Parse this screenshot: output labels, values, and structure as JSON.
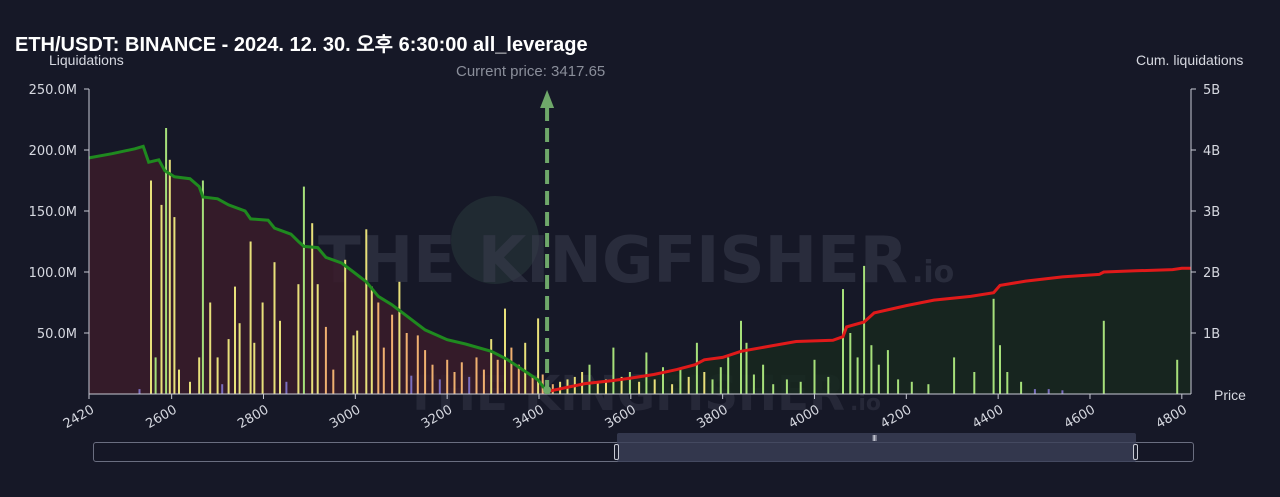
{
  "header": {
    "title": "ETH/USDT: BINANCE - 2024. 12. 30. 오후 6:30:00 all_leverage"
  },
  "annotations": {
    "current_price_label": "Current price: 3417.65",
    "current_price_value": 3417.65
  },
  "watermark": {
    "text": "THE KINGFISHER",
    "suffix": ".io"
  },
  "colors": {
    "background": "#161827",
    "short_area": "#3a1c2a",
    "long_area": "#17281f",
    "short_line": "#1f8a1f",
    "long_line": "#e01a1a",
    "bar_yellow": "#e8e07a",
    "bar_green": "#a6e07a",
    "bar_orange": "#f0b070",
    "bar_purple": "#7b6fbf",
    "current_price_line": "#6fa86a"
  },
  "chart_data": {
    "type": "bar",
    "title": "ETH/USDT: BINANCE - 2024. 12. 30. 오후 6:30:00 all_leverage",
    "ylabel": "Liquidations",
    "y2label": "Cum. liquidations",
    "xlabel": "Price",
    "xlim": [
      2420,
      4820
    ],
    "ylim": [
      0,
      250000000
    ],
    "y2lim": [
      0,
      5000000000
    ],
    "x_ticks": [
      2420,
      2600,
      2800,
      3000,
      3200,
      3400,
      3600,
      3800,
      4000,
      4200,
      4400,
      4600,
      4800
    ],
    "y_ticks": [
      {
        "value": 50000000,
        "label": "50.0M"
      },
      {
        "value": 100000000,
        "label": "100.0M"
      },
      {
        "value": 150000000,
        "label": "150.0M"
      },
      {
        "value": 200000000,
        "label": "200.0M"
      },
      {
        "value": 250000000,
        "label": "250.0M"
      }
    ],
    "y2_ticks": [
      {
        "value": 1000000000,
        "label": "1B"
      },
      {
        "value": 2000000000,
        "label": "2B"
      },
      {
        "value": 3000000000,
        "label": "3B"
      },
      {
        "value": 4000000000,
        "label": "4B"
      },
      {
        "value": 5000000000,
        "label": "5B"
      }
    ],
    "grid": false,
    "current_price": 3417.65,
    "bars": [
      {
        "x": 2530,
        "y": 4000000,
        "c": "purple"
      },
      {
        "x": 2555,
        "y": 175000000,
        "c": "yellow"
      },
      {
        "x": 2565,
        "y": 30000000,
        "c": "green"
      },
      {
        "x": 2578,
        "y": 155000000,
        "c": "yellow"
      },
      {
        "x": 2588,
        "y": 218000000,
        "c": "green"
      },
      {
        "x": 2596,
        "y": 192000000,
        "c": "yellow"
      },
      {
        "x": 2606,
        "y": 145000000,
        "c": "yellow"
      },
      {
        "x": 2616,
        "y": 20000000,
        "c": "yellow"
      },
      {
        "x": 2640,
        "y": 10000000,
        "c": "yellow"
      },
      {
        "x": 2660,
        "y": 30000000,
        "c": "yellow"
      },
      {
        "x": 2668,
        "y": 175000000,
        "c": "green"
      },
      {
        "x": 2684,
        "y": 75000000,
        "c": "yellow"
      },
      {
        "x": 2700,
        "y": 30000000,
        "c": "yellow"
      },
      {
        "x": 2710,
        "y": 8000000,
        "c": "purple"
      },
      {
        "x": 2724,
        "y": 45000000,
        "c": "yellow"
      },
      {
        "x": 2738,
        "y": 88000000,
        "c": "yellow"
      },
      {
        "x": 2748,
        "y": 58000000,
        "c": "yellow"
      },
      {
        "x": 2772,
        "y": 125000000,
        "c": "yellow"
      },
      {
        "x": 2780,
        "y": 42000000,
        "c": "yellow"
      },
      {
        "x": 2798,
        "y": 75000000,
        "c": "yellow"
      },
      {
        "x": 2824,
        "y": 108000000,
        "c": "yellow"
      },
      {
        "x": 2836,
        "y": 60000000,
        "c": "yellow"
      },
      {
        "x": 2850,
        "y": 10000000,
        "c": "purple"
      },
      {
        "x": 2876,
        "y": 90000000,
        "c": "yellow"
      },
      {
        "x": 2888,
        "y": 170000000,
        "c": "green"
      },
      {
        "x": 2906,
        "y": 140000000,
        "c": "yellow"
      },
      {
        "x": 2918,
        "y": 90000000,
        "c": "yellow"
      },
      {
        "x": 2936,
        "y": 55000000,
        "c": "orange"
      },
      {
        "x": 2952,
        "y": 20000000,
        "c": "orange"
      },
      {
        "x": 2978,
        "y": 110000000,
        "c": "yellow"
      },
      {
        "x": 2996,
        "y": 48000000,
        "c": "yellow"
      },
      {
        "x": 3004,
        "y": 52000000,
        "c": "yellow"
      },
      {
        "x": 3024,
        "y": 135000000,
        "c": "yellow"
      },
      {
        "x": 3036,
        "y": 88000000,
        "c": "yellow"
      },
      {
        "x": 3050,
        "y": 75000000,
        "c": "orange"
      },
      {
        "x": 3062,
        "y": 38000000,
        "c": "orange"
      },
      {
        "x": 3080,
        "y": 65000000,
        "c": "orange"
      },
      {
        "x": 3096,
        "y": 92000000,
        "c": "yellow"
      },
      {
        "x": 3112,
        "y": 50000000,
        "c": "orange"
      },
      {
        "x": 3122,
        "y": 15000000,
        "c": "purple"
      },
      {
        "x": 3136,
        "y": 48000000,
        "c": "orange"
      },
      {
        "x": 3152,
        "y": 36000000,
        "c": "orange"
      },
      {
        "x": 3168,
        "y": 24000000,
        "c": "orange"
      },
      {
        "x": 3184,
        "y": 12000000,
        "c": "purple"
      },
      {
        "x": 3200,
        "y": 28000000,
        "c": "orange"
      },
      {
        "x": 3216,
        "y": 18000000,
        "c": "orange"
      },
      {
        "x": 3232,
        "y": 26000000,
        "c": "orange"
      },
      {
        "x": 3248,
        "y": 14000000,
        "c": "purple"
      },
      {
        "x": 3264,
        "y": 30000000,
        "c": "orange"
      },
      {
        "x": 3280,
        "y": 20000000,
        "c": "orange"
      },
      {
        "x": 3296,
        "y": 45000000,
        "c": "yellow"
      },
      {
        "x": 3310,
        "y": 28000000,
        "c": "orange"
      },
      {
        "x": 3326,
        "y": 70000000,
        "c": "yellow"
      },
      {
        "x": 3340,
        "y": 38000000,
        "c": "orange"
      },
      {
        "x": 3356,
        "y": 24000000,
        "c": "orange"
      },
      {
        "x": 3370,
        "y": 42000000,
        "c": "yellow"
      },
      {
        "x": 3386,
        "y": 14000000,
        "c": "orange"
      },
      {
        "x": 3398,
        "y": 62000000,
        "c": "yellow"
      },
      {
        "x": 3408,
        "y": 16000000,
        "c": "orange"
      },
      {
        "x": 3430,
        "y": 8000000,
        "c": "orange"
      },
      {
        "x": 3446,
        "y": 10000000,
        "c": "yellow"
      },
      {
        "x": 3462,
        "y": 12000000,
        "c": "yellow"
      },
      {
        "x": 3478,
        "y": 14000000,
        "c": "yellow"
      },
      {
        "x": 3494,
        "y": 18000000,
        "c": "yellow"
      },
      {
        "x": 3510,
        "y": 24000000,
        "c": "green"
      },
      {
        "x": 3528,
        "y": 10000000,
        "c": "yellow"
      },
      {
        "x": 3546,
        "y": 12000000,
        "c": "yellow"
      },
      {
        "x": 3562,
        "y": 38000000,
        "c": "green"
      },
      {
        "x": 3580,
        "y": 14000000,
        "c": "yellow"
      },
      {
        "x": 3598,
        "y": 18000000,
        "c": "green"
      },
      {
        "x": 3618,
        "y": 10000000,
        "c": "yellow"
      },
      {
        "x": 3634,
        "y": 34000000,
        "c": "green"
      },
      {
        "x": 3652,
        "y": 12000000,
        "c": "yellow"
      },
      {
        "x": 3670,
        "y": 22000000,
        "c": "green"
      },
      {
        "x": 3690,
        "y": 8000000,
        "c": "yellow"
      },
      {
        "x": 3708,
        "y": 20000000,
        "c": "green"
      },
      {
        "x": 3726,
        "y": 14000000,
        "c": "yellow"
      },
      {
        "x": 3744,
        "y": 42000000,
        "c": "green"
      },
      {
        "x": 3760,
        "y": 18000000,
        "c": "yellow"
      },
      {
        "x": 3778,
        "y": 12000000,
        "c": "green"
      },
      {
        "x": 3796,
        "y": 22000000,
        "c": "green"
      },
      {
        "x": 3812,
        "y": 30000000,
        "c": "green"
      },
      {
        "x": 3840,
        "y": 60000000,
        "c": "green"
      },
      {
        "x": 3852,
        "y": 42000000,
        "c": "green"
      },
      {
        "x": 3868,
        "y": 16000000,
        "c": "green"
      },
      {
        "x": 3888,
        "y": 24000000,
        "c": "green"
      },
      {
        "x": 3910,
        "y": 8000000,
        "c": "green"
      },
      {
        "x": 3940,
        "y": 12000000,
        "c": "green"
      },
      {
        "x": 3970,
        "y": 10000000,
        "c": "green"
      },
      {
        "x": 4000,
        "y": 28000000,
        "c": "green"
      },
      {
        "x": 4030,
        "y": 14000000,
        "c": "green"
      },
      {
        "x": 4062,
        "y": 86000000,
        "c": "green"
      },
      {
        "x": 4078,
        "y": 50000000,
        "c": "green"
      },
      {
        "x": 4094,
        "y": 30000000,
        "c": "green"
      },
      {
        "x": 4108,
        "y": 105000000,
        "c": "green"
      },
      {
        "x": 4124,
        "y": 40000000,
        "c": "green"
      },
      {
        "x": 4140,
        "y": 24000000,
        "c": "green"
      },
      {
        "x": 4160,
        "y": 36000000,
        "c": "green"
      },
      {
        "x": 4182,
        "y": 12000000,
        "c": "green"
      },
      {
        "x": 4212,
        "y": 10000000,
        "c": "green"
      },
      {
        "x": 4248,
        "y": 8000000,
        "c": "green"
      },
      {
        "x": 4304,
        "y": 30000000,
        "c": "green"
      },
      {
        "x": 4348,
        "y": 18000000,
        "c": "green"
      },
      {
        "x": 4390,
        "y": 78000000,
        "c": "green"
      },
      {
        "x": 4404,
        "y": 40000000,
        "c": "green"
      },
      {
        "x": 4420,
        "y": 18000000,
        "c": "green"
      },
      {
        "x": 4450,
        "y": 10000000,
        "c": "green"
      },
      {
        "x": 4480,
        "y": 4000000,
        "c": "purple"
      },
      {
        "x": 4510,
        "y": 4000000,
        "c": "purple"
      },
      {
        "x": 4540,
        "y": 3000000,
        "c": "purple"
      },
      {
        "x": 4630,
        "y": 60000000,
        "c": "green"
      },
      {
        "x": 4790,
        "y": 28000000,
        "c": "green"
      }
    ],
    "series": [
      {
        "side": "short",
        "points": [
          [
            2420,
            3870000000
          ],
          [
            2470,
            3940000000
          ],
          [
            2520,
            4020000000
          ],
          [
            2538,
            4060000000
          ],
          [
            2550,
            3800000000
          ],
          [
            2572,
            3840000000
          ],
          [
            2585,
            3660000000
          ],
          [
            2606,
            3560000000
          ],
          [
            2640,
            3530000000
          ],
          [
            2660,
            3400000000
          ],
          [
            2668,
            3230000000
          ],
          [
            2700,
            3200000000
          ],
          [
            2724,
            3100000000
          ],
          [
            2760,
            3000000000
          ],
          [
            2772,
            2870000000
          ],
          [
            2810,
            2850000000
          ],
          [
            2824,
            2720000000
          ],
          [
            2860,
            2620000000
          ],
          [
            2876,
            2500000000
          ],
          [
            2888,
            2420000000
          ],
          [
            2918,
            2400000000
          ],
          [
            2936,
            2240000000
          ],
          [
            2970,
            2150000000
          ],
          [
            2996,
            2000000000
          ],
          [
            3024,
            1840000000
          ],
          [
            3050,
            1600000000
          ],
          [
            3080,
            1460000000
          ],
          [
            3112,
            1280000000
          ],
          [
            3152,
            1050000000
          ],
          [
            3200,
            890000000
          ],
          [
            3240,
            820000000
          ],
          [
            3296,
            700000000
          ],
          [
            3330,
            570000000
          ],
          [
            3360,
            420000000
          ],
          [
            3398,
            230000000
          ],
          [
            3417,
            40000000
          ]
        ]
      },
      {
        "side": "long",
        "points": [
          [
            3417,
            40000000
          ],
          [
            3500,
            170000000
          ],
          [
            3560,
            220000000
          ],
          [
            3600,
            260000000
          ],
          [
            3650,
            320000000
          ],
          [
            3700,
            400000000
          ],
          [
            3740,
            480000000
          ],
          [
            3760,
            560000000
          ],
          [
            3800,
            600000000
          ],
          [
            3840,
            700000000
          ],
          [
            3900,
            780000000
          ],
          [
            3960,
            860000000
          ],
          [
            4040,
            880000000
          ],
          [
            4062,
            940000000
          ],
          [
            4070,
            1100000000
          ],
          [
            4108,
            1180000000
          ],
          [
            4130,
            1330000000
          ],
          [
            4200,
            1450000000
          ],
          [
            4260,
            1540000000
          ],
          [
            4340,
            1600000000
          ],
          [
            4390,
            1660000000
          ],
          [
            4404,
            1780000000
          ],
          [
            4460,
            1850000000
          ],
          [
            4540,
            1920000000
          ],
          [
            4620,
            1960000000
          ],
          [
            4630,
            2000000000
          ],
          [
            4700,
            2020000000
          ],
          [
            4780,
            2040000000
          ],
          [
            4800,
            2060000000
          ],
          [
            4820,
            2060000000
          ]
        ]
      }
    ]
  },
  "axis_labels": {
    "left": "Liquidations",
    "right": "Cum. liquidations",
    "x": "Price"
  },
  "range_slider": {
    "grip": "III"
  }
}
